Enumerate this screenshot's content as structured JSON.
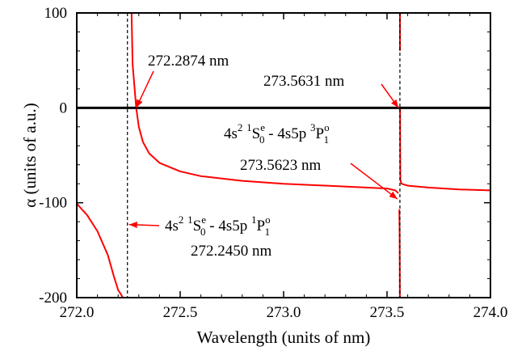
{
  "chart_data": {
    "type": "line",
    "title": "",
    "xlabel": "Wavelength (units of nm)",
    "ylabel": "α (units of a.u.)",
    "xlim": [
      272.0,
      274.0
    ],
    "ylim": [
      -200,
      100
    ],
    "x_ticks": [
      272.0,
      272.5,
      273.0,
      273.5,
      274.0
    ],
    "x_tick_labels": [
      "272.0",
      "272.5",
      "273.0",
      "273.5",
      "274.0"
    ],
    "y_ticks": [
      -200,
      -100,
      0,
      100
    ],
    "y_tick_labels": [
      "-200",
      "-100",
      "0",
      "100"
    ],
    "series": [
      {
        "color": "#ff0000",
        "style": "solid",
        "branches": [
          {
            "x": [
              272.0,
              272.05,
              272.1,
              272.15,
              272.18,
              272.2,
              272.215,
              272.223
            ],
            "y": [
              -101,
              -113,
              -130,
              -155,
              -178,
              -192,
              -197,
              -200
            ]
          },
          {
            "x": [
              272.265,
              272.27,
              272.2874,
              272.3,
              272.32,
              272.35,
              272.4,
              272.5,
              272.6,
              272.8,
              273.0,
              273.2,
              273.4,
              273.5,
              273.54,
              273.555
            ],
            "y": [
              100,
              46,
              0,
              -20,
              -36,
              -48,
              -58,
              -67,
              -72,
              -77,
              -80,
              -82,
              -84,
              -85,
              -87,
              -90
            ]
          },
          {
            "x": [
              273.5595,
              273.5608,
              273.5616,
              273.5621
            ],
            "y": [
              -107,
              -130,
              -170,
              -200
            ]
          },
          {
            "x": [
              273.5631,
              273.5637,
              273.5645,
              273.57,
              273.6,
              273.7,
              273.85,
              274.0
            ],
            "y": [
              0,
              -50,
              -76,
              -80,
              -82,
              -84,
              -86,
              -87
            ]
          },
          {
            "x": [
              273.5626,
              273.5627
            ],
            "y": [
              100,
              60
            ]
          }
        ]
      }
    ],
    "reference_lines": [
      {
        "orientation": "horizontal",
        "value": 0,
        "color": "#000000",
        "style": "solid"
      },
      {
        "orientation": "vertical",
        "value": 272.245,
        "color": "#000000",
        "style": "dashed"
      },
      {
        "orientation": "vertical",
        "value": 273.5623,
        "color": "#000000",
        "style": "dashed"
      }
    ],
    "annotations": [
      {
        "text": "272.2874 nm",
        "point": [
          272.2874,
          0
        ]
      },
      {
        "text": "273.5631 nm",
        "point": [
          273.5631,
          0
        ]
      },
      {
        "text_parts": [
          "4s",
          "2",
          " ",
          "1",
          "S",
          "e",
          "0",
          " - 4s5p ",
          "3",
          "P",
          "o",
          "1"
        ],
        "text_line2": "273.5623 nm",
        "point": [
          273.5623,
          -85
        ]
      },
      {
        "text_parts": [
          "4s",
          "2",
          " ",
          "1",
          "S",
          "e",
          "0",
          " - 4s5p ",
          "1",
          "P",
          "o",
          "1"
        ],
        "text_line2": "272.2450 nm",
        "point": [
          272.245,
          -123
        ]
      }
    ]
  }
}
